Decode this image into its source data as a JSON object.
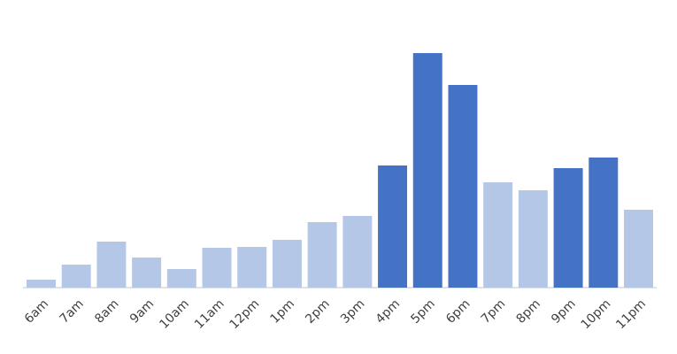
{
  "chart_data": {
    "type": "bar",
    "categories": [
      "6am",
      "7am",
      "8am",
      "9am",
      "10am",
      "11am",
      "12pm",
      "1pm",
      "2pm",
      "3pm",
      "4pm",
      "5pm",
      "6pm",
      "7pm",
      "8pm",
      "9pm",
      "10pm",
      "11pm"
    ],
    "values": [
      9,
      26,
      52,
      34,
      21,
      45,
      46,
      54,
      74,
      81,
      138,
      265,
      229,
      119,
      110,
      135,
      147,
      88
    ],
    "colors": [
      "#b4c7e7",
      "#b4c7e7",
      "#b4c7e7",
      "#b4c7e7",
      "#b4c7e7",
      "#b4c7e7",
      "#b4c7e7",
      "#b4c7e7",
      "#b4c7e7",
      "#b4c7e7",
      "#4472c4",
      "#4472c4",
      "#4472c4",
      "#b4c7e7",
      "#b4c7e7",
      "#4472c4",
      "#4472c4",
      "#b4c7e7"
    ],
    "ylim": [
      0,
      300
    ]
  }
}
